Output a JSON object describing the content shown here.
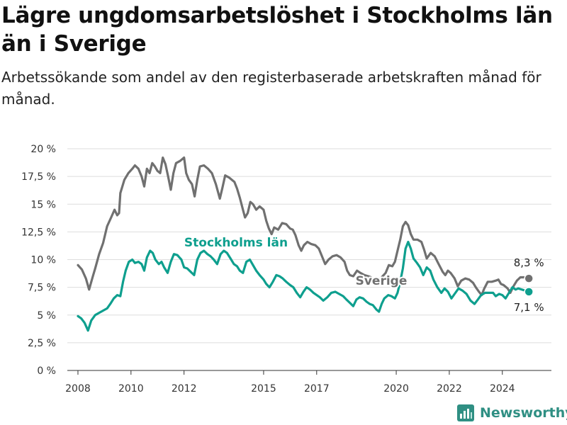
{
  "title": "Lägre ungdomsarbetslöshet i Stockholms län än i Sverige",
  "subtitle": "Arbetssökande som andel av den registerbaserade arbetskraften månad för månad.",
  "brand": {
    "name": "Newsworthy",
    "icon": "newsworthy-logo-icon"
  },
  "colors": {
    "sverige": "#707070",
    "stockholm": "#0e9f8e",
    "grid": "#dddddd",
    "axis": "#333333"
  },
  "chart_data": {
    "type": "line",
    "title": "Lägre ungdomsarbetslöshet i Stockholms län än i Sverige",
    "subtitle": "Arbetssökande som andel av den registerbaserade arbetskraften månad för månad.",
    "xlabel": "",
    "ylabel": "",
    "xlim": [
      2007.6,
      2025.85
    ],
    "ylim": [
      0,
      20
    ],
    "grid": true,
    "y_ticks": [
      {
        "v": 0,
        "label": "0 %"
      },
      {
        "v": 2.5,
        "label": "2,5 %"
      },
      {
        "v": 5,
        "label": "5 %"
      },
      {
        "v": 7.5,
        "label": "7,5 %"
      },
      {
        "v": 10,
        "label": "10 %"
      },
      {
        "v": 12.5,
        "label": "12,5 %"
      },
      {
        "v": 15,
        "label": "15 %"
      },
      {
        "v": 17.5,
        "label": "17,5 %"
      },
      {
        "v": 20,
        "label": "20 %"
      }
    ],
    "x_ticks": [
      {
        "v": 2008,
        "label": "2008"
      },
      {
        "v": 2010,
        "label": "2010"
      },
      {
        "v": 2012,
        "label": "2012"
      },
      {
        "v": 2015,
        "label": "2015"
      },
      {
        "v": 2017,
        "label": "2017"
      },
      {
        "v": 2020,
        "label": "2020"
      },
      {
        "v": 2022,
        "label": "2022"
      },
      {
        "v": 2024,
        "label": "2024"
      }
    ],
    "series": [
      {
        "name": "Sverige",
        "color": "#707070",
        "end_label": "8,3 %",
        "points": [
          [
            2008.0,
            9.5
          ],
          [
            2008.15,
            9.1
          ],
          [
            2008.3,
            8.3
          ],
          [
            2008.42,
            7.3
          ],
          [
            2008.55,
            8.4
          ],
          [
            2008.65,
            9.2
          ],
          [
            2008.8,
            10.5
          ],
          [
            2008.95,
            11.5
          ],
          [
            2009.1,
            13.0
          ],
          [
            2009.25,
            13.8
          ],
          [
            2009.38,
            14.5
          ],
          [
            2009.48,
            14.0
          ],
          [
            2009.55,
            14.2
          ],
          [
            2009.6,
            16.0
          ],
          [
            2009.75,
            17.2
          ],
          [
            2009.9,
            17.8
          ],
          [
            2010.05,
            18.2
          ],
          [
            2010.15,
            18.5
          ],
          [
            2010.28,
            18.2
          ],
          [
            2010.4,
            17.5
          ],
          [
            2010.5,
            16.6
          ],
          [
            2010.6,
            18.2
          ],
          [
            2010.7,
            17.8
          ],
          [
            2010.8,
            18.7
          ],
          [
            2010.9,
            18.4
          ],
          [
            2011.0,
            18.0
          ],
          [
            2011.1,
            17.8
          ],
          [
            2011.2,
            19.2
          ],
          [
            2011.3,
            18.6
          ],
          [
            2011.4,
            17.5
          ],
          [
            2011.5,
            16.3
          ],
          [
            2011.6,
            17.8
          ],
          [
            2011.7,
            18.7
          ],
          [
            2011.85,
            18.9
          ],
          [
            2012.0,
            19.2
          ],
          [
            2012.08,
            17.8
          ],
          [
            2012.18,
            17.2
          ],
          [
            2012.3,
            16.8
          ],
          [
            2012.4,
            15.7
          ],
          [
            2012.5,
            17.2
          ],
          [
            2012.6,
            18.4
          ],
          [
            2012.75,
            18.5
          ],
          [
            2012.9,
            18.2
          ],
          [
            2013.05,
            17.8
          ],
          [
            2013.2,
            16.8
          ],
          [
            2013.35,
            15.5
          ],
          [
            2013.45,
            16.5
          ],
          [
            2013.55,
            17.6
          ],
          [
            2013.7,
            17.4
          ],
          [
            2013.9,
            17.0
          ],
          [
            2014.0,
            16.4
          ],
          [
            2014.1,
            15.6
          ],
          [
            2014.22,
            14.5
          ],
          [
            2014.3,
            13.8
          ],
          [
            2014.4,
            14.2
          ],
          [
            2014.5,
            15.2
          ],
          [
            2014.6,
            15.0
          ],
          [
            2014.72,
            14.5
          ],
          [
            2014.85,
            14.8
          ],
          [
            2015.0,
            14.5
          ],
          [
            2015.1,
            13.5
          ],
          [
            2015.2,
            12.8
          ],
          [
            2015.3,
            12.3
          ],
          [
            2015.4,
            12.9
          ],
          [
            2015.55,
            12.7
          ],
          [
            2015.7,
            13.3
          ],
          [
            2015.85,
            13.2
          ],
          [
            2016.0,
            12.8
          ],
          [
            2016.1,
            12.7
          ],
          [
            2016.2,
            12.2
          ],
          [
            2016.32,
            11.3
          ],
          [
            2016.42,
            10.8
          ],
          [
            2016.52,
            11.3
          ],
          [
            2016.65,
            11.6
          ],
          [
            2016.8,
            11.4
          ],
          [
            2016.95,
            11.3
          ],
          [
            2017.08,
            11.0
          ],
          [
            2017.2,
            10.3
          ],
          [
            2017.32,
            9.6
          ],
          [
            2017.45,
            10.0
          ],
          [
            2017.6,
            10.3
          ],
          [
            2017.75,
            10.4
          ],
          [
            2017.9,
            10.2
          ],
          [
            2018.05,
            9.8
          ],
          [
            2018.15,
            9.0
          ],
          [
            2018.25,
            8.6
          ],
          [
            2018.38,
            8.5
          ],
          [
            2018.52,
            9.0
          ],
          [
            2018.65,
            8.8
          ],
          [
            2018.8,
            8.6
          ],
          [
            2018.95,
            8.5
          ],
          [
            2019.15,
            8.3
          ],
          [
            2019.3,
            8.0
          ],
          [
            2019.45,
            8.4
          ],
          [
            2019.6,
            8.8
          ],
          [
            2019.72,
            9.5
          ],
          [
            2019.85,
            9.4
          ],
          [
            2019.95,
            9.8
          ],
          [
            2020.05,
            10.8
          ],
          [
            2020.15,
            11.8
          ],
          [
            2020.25,
            13.0
          ],
          [
            2020.35,
            13.4
          ],
          [
            2020.45,
            13.1
          ],
          [
            2020.55,
            12.3
          ],
          [
            2020.65,
            11.8
          ],
          [
            2020.8,
            11.8
          ],
          [
            2020.95,
            11.6
          ],
          [
            2021.05,
            10.9
          ],
          [
            2021.15,
            10.1
          ],
          [
            2021.3,
            10.6
          ],
          [
            2021.45,
            10.3
          ],
          [
            2021.6,
            9.6
          ],
          [
            2021.75,
            8.9
          ],
          [
            2021.85,
            8.6
          ],
          [
            2021.95,
            9.0
          ],
          [
            2022.05,
            8.8
          ],
          [
            2022.2,
            8.3
          ],
          [
            2022.32,
            7.6
          ],
          [
            2022.45,
            8.1
          ],
          [
            2022.6,
            8.3
          ],
          [
            2022.75,
            8.2
          ],
          [
            2022.9,
            7.9
          ],
          [
            2023.0,
            7.5
          ],
          [
            2023.12,
            7.1
          ],
          [
            2023.22,
            6.8
          ],
          [
            2023.32,
            7.4
          ],
          [
            2023.45,
            8.0
          ],
          [
            2023.6,
            8.0
          ],
          [
            2023.75,
            8.1
          ],
          [
            2023.85,
            8.2
          ],
          [
            2023.95,
            7.8
          ],
          [
            2024.05,
            7.7
          ],
          [
            2024.2,
            7.4
          ],
          [
            2024.3,
            7.0
          ],
          [
            2024.42,
            7.6
          ],
          [
            2024.55,
            8.1
          ],
          [
            2024.68,
            8.4
          ],
          [
            2024.82,
            8.4
          ],
          [
            2025.0,
            8.3
          ]
        ]
      },
      {
        "name": "Stockholms län",
        "color": "#0e9f8e",
        "end_label": "7,1 %",
        "points": [
          [
            2008.0,
            4.9
          ],
          [
            2008.12,
            4.7
          ],
          [
            2008.25,
            4.3
          ],
          [
            2008.38,
            3.6
          ],
          [
            2008.5,
            4.5
          ],
          [
            2008.65,
            5.0
          ],
          [
            2008.8,
            5.2
          ],
          [
            2008.95,
            5.4
          ],
          [
            2009.1,
            5.6
          ],
          [
            2009.22,
            6.0
          ],
          [
            2009.35,
            6.5
          ],
          [
            2009.48,
            6.8
          ],
          [
            2009.6,
            6.7
          ],
          [
            2009.7,
            8.0
          ],
          [
            2009.8,
            9.0
          ],
          [
            2009.92,
            9.8
          ],
          [
            2010.05,
            10.0
          ],
          [
            2010.15,
            9.7
          ],
          [
            2010.28,
            9.8
          ],
          [
            2010.4,
            9.6
          ],
          [
            2010.5,
            9.0
          ],
          [
            2010.6,
            10.2
          ],
          [
            2010.72,
            10.8
          ],
          [
            2010.82,
            10.6
          ],
          [
            2010.92,
            10.0
          ],
          [
            2011.05,
            9.6
          ],
          [
            2011.15,
            9.8
          ],
          [
            2011.25,
            9.3
          ],
          [
            2011.38,
            8.8
          ],
          [
            2011.5,
            9.8
          ],
          [
            2011.62,
            10.5
          ],
          [
            2011.75,
            10.4
          ],
          [
            2011.9,
            10.0
          ],
          [
            2012.0,
            9.3
          ],
          [
            2012.12,
            9.2
          ],
          [
            2012.25,
            8.9
          ],
          [
            2012.38,
            8.6
          ],
          [
            2012.5,
            10.0
          ],
          [
            2012.62,
            10.6
          ],
          [
            2012.75,
            10.8
          ],
          [
            2012.88,
            10.5
          ],
          [
            2013.0,
            10.3
          ],
          [
            2013.12,
            10.0
          ],
          [
            2013.25,
            9.6
          ],
          [
            2013.38,
            10.5
          ],
          [
            2013.5,
            10.8
          ],
          [
            2013.62,
            10.6
          ],
          [
            2013.75,
            10.1
          ],
          [
            2013.88,
            9.6
          ],
          [
            2014.0,
            9.4
          ],
          [
            2014.1,
            9.0
          ],
          [
            2014.22,
            8.8
          ],
          [
            2014.35,
            9.8
          ],
          [
            2014.48,
            10.0
          ],
          [
            2014.6,
            9.5
          ],
          [
            2014.72,
            9.0
          ],
          [
            2014.85,
            8.6
          ],
          [
            2015.0,
            8.2
          ],
          [
            2015.1,
            7.8
          ],
          [
            2015.22,
            7.5
          ],
          [
            2015.35,
            8.0
          ],
          [
            2015.48,
            8.6
          ],
          [
            2015.6,
            8.5
          ],
          [
            2015.72,
            8.3
          ],
          [
            2015.85,
            8.0
          ],
          [
            2016.0,
            7.7
          ],
          [
            2016.12,
            7.5
          ],
          [
            2016.25,
            7.0
          ],
          [
            2016.38,
            6.6
          ],
          [
            2016.5,
            7.1
          ],
          [
            2016.62,
            7.5
          ],
          [
            2016.75,
            7.3
          ],
          [
            2016.88,
            7.0
          ],
          [
            2017.0,
            6.8
          ],
          [
            2017.12,
            6.6
          ],
          [
            2017.25,
            6.3
          ],
          [
            2017.4,
            6.6
          ],
          [
            2017.55,
            7.0
          ],
          [
            2017.7,
            7.1
          ],
          [
            2017.85,
            6.9
          ],
          [
            2018.0,
            6.7
          ],
          [
            2018.12,
            6.4
          ],
          [
            2018.25,
            6.1
          ],
          [
            2018.38,
            5.8
          ],
          [
            2018.5,
            6.4
          ],
          [
            2018.62,
            6.6
          ],
          [
            2018.75,
            6.5
          ],
          [
            2018.88,
            6.2
          ],
          [
            2019.0,
            6.0
          ],
          [
            2019.12,
            5.9
          ],
          [
            2019.25,
            5.5
          ],
          [
            2019.35,
            5.3
          ],
          [
            2019.45,
            6.0
          ],
          [
            2019.55,
            6.5
          ],
          [
            2019.7,
            6.8
          ],
          [
            2019.82,
            6.7
          ],
          [
            2019.95,
            6.5
          ],
          [
            2020.05,
            7.0
          ],
          [
            2020.15,
            8.0
          ],
          [
            2020.25,
            9.2
          ],
          [
            2020.35,
            11.0
          ],
          [
            2020.45,
            11.6
          ],
          [
            2020.55,
            11.0
          ],
          [
            2020.65,
            10.1
          ],
          [
            2020.78,
            9.7
          ],
          [
            2020.9,
            9.3
          ],
          [
            2021.02,
            8.6
          ],
          [
            2021.15,
            9.3
          ],
          [
            2021.28,
            9.0
          ],
          [
            2021.4,
            8.2
          ],
          [
            2021.55,
            7.5
          ],
          [
            2021.7,
            7.0
          ],
          [
            2021.82,
            7.4
          ],
          [
            2021.95,
            7.1
          ],
          [
            2022.08,
            6.5
          ],
          [
            2022.2,
            6.9
          ],
          [
            2022.35,
            7.4
          ],
          [
            2022.5,
            7.2
          ],
          [
            2022.65,
            6.9
          ],
          [
            2022.8,
            6.3
          ],
          [
            2022.95,
            6.0
          ],
          [
            2023.08,
            6.4
          ],
          [
            2023.2,
            6.8
          ],
          [
            2023.35,
            7.0
          ],
          [
            2023.5,
            7.0
          ],
          [
            2023.65,
            7.0
          ],
          [
            2023.75,
            6.7
          ],
          [
            2023.88,
            6.9
          ],
          [
            2024.0,
            6.8
          ],
          [
            2024.12,
            6.5
          ],
          [
            2024.25,
            7.0
          ],
          [
            2024.38,
            7.5
          ],
          [
            2024.5,
            7.3
          ],
          [
            2024.6,
            7.4
          ],
          [
            2025.0,
            7.1
          ]
        ]
      }
    ]
  }
}
